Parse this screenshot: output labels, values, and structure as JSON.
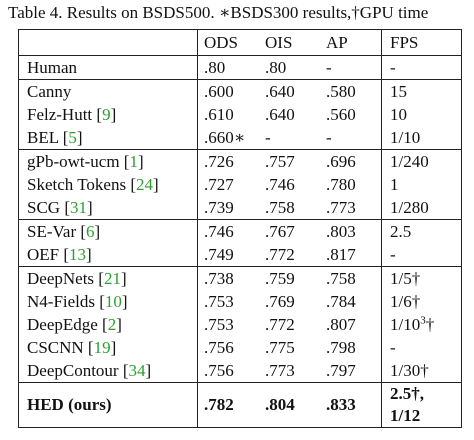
{
  "caption": "Table 4. Results on BSDS500. ∗BSDS300 results,†GPU time",
  "header": [
    "ODS",
    "OIS",
    "AP",
    "FPS"
  ],
  "groups": [
    [
      {
        "method": [
          "Human"
        ],
        "cells": [
          ".80",
          ".80",
          "-",
          "-"
        ]
      }
    ],
    [
      {
        "method": [
          "Canny"
        ],
        "cells": [
          ".600",
          ".640",
          ".580",
          "15"
        ]
      },
      {
        "method": [
          "Felz-Hutt [",
          "9",
          "]"
        ],
        "cells": [
          ".610",
          ".640",
          ".560",
          "10"
        ]
      },
      {
        "method": [
          "BEL [",
          "5",
          "]"
        ],
        "cells": [
          ".660∗",
          "-",
          "-",
          "1/10"
        ]
      }
    ],
    [
      {
        "method": [
          "gPb-owt-ucm [",
          "1",
          "]"
        ],
        "cells": [
          ".726",
          ".757",
          ".696",
          "1/240"
        ]
      },
      {
        "method": [
          "Sketch Tokens [",
          "24",
          "]"
        ],
        "cells": [
          ".727",
          ".746",
          ".780",
          "1"
        ]
      },
      {
        "method": [
          "SCG [",
          "31",
          "]"
        ],
        "cells": [
          ".739",
          ".758",
          ".773",
          "1/280"
        ]
      }
    ],
    [
      {
        "method": [
          "SE-Var [",
          "6",
          "]"
        ],
        "cells": [
          ".746",
          ".767",
          ".803",
          "2.5"
        ]
      },
      {
        "method": [
          "OEF [",
          "13",
          "]"
        ],
        "cells": [
          ".749",
          ".772",
          ".817",
          "-"
        ]
      }
    ],
    [
      {
        "method": [
          "DeepNets [",
          "21",
          "]"
        ],
        "cells": [
          ".738",
          ".759",
          ".758",
          "1/5†"
        ]
      },
      {
        "method": [
          "N4-Fields [",
          "10",
          "]"
        ],
        "cells": [
          ".753",
          ".769",
          ".784",
          "1/6†"
        ]
      },
      {
        "method": [
          "DeepEdge [",
          "2",
          "]"
        ],
        "cells": [
          ".753",
          ".772",
          ".807",
          {
            "text": "1/10",
            "sup": "3",
            "after": "†"
          }
        ]
      },
      {
        "method": [
          "CSCNN [",
          "19",
          "]"
        ],
        "cells": [
          ".756",
          ".775",
          ".798",
          "-"
        ]
      },
      {
        "method": [
          "DeepContour [",
          "34",
          "]"
        ],
        "cells": [
          ".756",
          ".773",
          ".797",
          "1/30†"
        ]
      }
    ],
    [
      {
        "method": [
          "HED (ours)"
        ],
        "bold": true,
        "cells": [
          ".782",
          ".804",
          ".833",
          {
            "lines": [
              "2.5†,",
              "1/12"
            ]
          }
        ]
      }
    ]
  ]
}
